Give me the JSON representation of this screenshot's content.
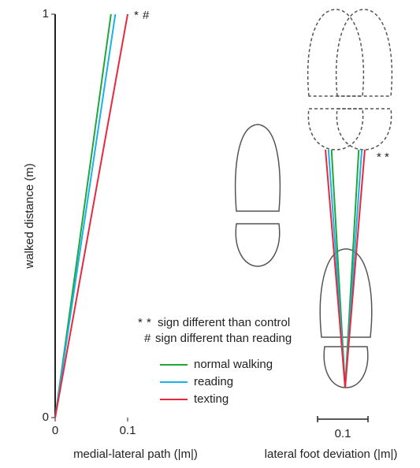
{
  "chart_data": [
    {
      "type": "line",
      "y_label": "walked distance (m)",
      "x_label": "medial-lateral path (|m|)",
      "y": [
        0,
        1
      ],
      "series": [
        {
          "name": "normal walking",
          "color": "#1fa63a",
          "values": [
            0,
            0.077
          ]
        },
        {
          "name": "reading",
          "color": "#1ab2e8",
          "values": [
            0,
            0.083
          ]
        },
        {
          "name": "texting",
          "color": "#e8283c",
          "values": [
            0,
            0.1
          ]
        }
      ],
      "xlim": [
        0,
        0.1
      ],
      "ylim": [
        0,
        1
      ],
      "xticks": [
        0,
        0.1
      ],
      "yticks": [
        0,
        1
      ],
      "markers": [
        {
          "text": "*",
          "color": "#e8283c"
        },
        {
          "text": "#",
          "color": "#e8283c"
        }
      ]
    },
    {
      "type": "fan",
      "x_label": "lateral foot deviation (|m|)",
      "series": [
        {
          "name": "normal walking",
          "color": "#1fa63a",
          "values": [
            0.027
          ]
        },
        {
          "name": "reading",
          "color": "#1ab2e8",
          "values": [
            0.033
          ]
        },
        {
          "name": "texting",
          "color": "#e8283c",
          "values": [
            0.039
          ]
        }
      ],
      "scale_bar": 0.1,
      "markers": [
        {
          "text": "*",
          "color": "#1ab2e8"
        },
        {
          "text": "*",
          "color": "#e8283c"
        }
      ]
    }
  ],
  "notes": [
    {
      "symbols": [
        {
          "text": "*",
          "color": "#e8283c"
        },
        {
          "text": "*",
          "color": "#1ab2e8"
        }
      ],
      "text": "sign different than control"
    },
    {
      "symbols": [
        {
          "text": "#",
          "color": "#e8283c"
        }
      ],
      "text": "sign different than reading"
    }
  ]
}
